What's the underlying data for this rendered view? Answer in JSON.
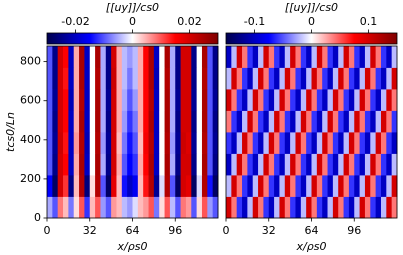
{
  "chart_data": [
    {
      "type": "heatmap",
      "colormap": "seismic",
      "xlabel": "x/ρs0",
      "ylabel": "tcs0/Ln",
      "xlim": [
        0,
        128
      ],
      "xticks": [
        0,
        32,
        64,
        96
      ],
      "ylim": [
        0,
        880
      ],
      "yticks": [
        0,
        200,
        400,
        600,
        800
      ],
      "xbins": [
        0,
        4,
        8,
        12,
        16,
        20,
        24,
        28,
        32,
        36,
        40,
        44,
        48,
        52,
        56,
        60,
        64,
        68,
        72,
        76,
        80,
        84,
        88,
        92,
        96,
        100,
        104,
        108,
        112,
        116,
        120,
        124,
        128
      ],
      "ybins": [
        0,
        110,
        220,
        330,
        440,
        550,
        660,
        770,
        880
      ],
      "colorbar": {
        "label": "[[uy]]/cs0",
        "lim": [
          -0.03,
          0.03
        ],
        "ticks": [
          -0.02,
          0,
          0.02
        ]
      },
      "z": [
        [
          -0.005,
          -0.01,
          0.008,
          0.004,
          -0.008,
          0.002,
          0.01,
          -0.012,
          0.004,
          0.01,
          -0.006,
          -0.01,
          0.006,
          0.004,
          -0.004,
          -0.006,
          -0.002,
          0.004,
          0.006,
          0.01,
          -0.008,
          0.002,
          0.01,
          -0.004,
          -0.01,
          0.008,
          0.006,
          -0.01,
          0.002,
          0.01,
          -0.006,
          -0.01
        ],
        [
          -0.015,
          -0.028,
          0.02,
          0.012,
          -0.025,
          0.004,
          0.024,
          -0.026,
          0.002,
          0.024,
          -0.01,
          -0.028,
          0.018,
          0.004,
          -0.014,
          -0.02,
          -0.016,
          0.004,
          0.014,
          0.024,
          -0.024,
          -0.002,
          0.024,
          -0.01,
          -0.028,
          0.02,
          0.018,
          -0.028,
          -0.002,
          0.024,
          -0.014,
          -0.028
        ],
        [
          -0.01,
          -0.025,
          0.02,
          0.015,
          -0.02,
          0.005,
          0.025,
          -0.02,
          0.0,
          0.025,
          -0.005,
          -0.025,
          0.02,
          0.005,
          -0.01,
          -0.015,
          -0.012,
          0.005,
          0.015,
          0.025,
          -0.02,
          0.0,
          0.025,
          -0.005,
          -0.025,
          0.02,
          0.02,
          -0.025,
          0.0,
          0.025,
          -0.01,
          -0.025
        ],
        [
          -0.01,
          -0.024,
          0.021,
          0.014,
          -0.02,
          0.006,
          0.024,
          -0.021,
          0.0,
          0.024,
          -0.006,
          -0.024,
          0.02,
          0.004,
          -0.008,
          -0.014,
          -0.01,
          0.004,
          0.016,
          0.024,
          -0.02,
          0.0,
          0.024,
          -0.006,
          -0.024,
          0.021,
          0.019,
          -0.024,
          0.0,
          0.024,
          -0.01,
          -0.024
        ],
        [
          -0.01,
          -0.025,
          0.02,
          0.015,
          -0.02,
          0.005,
          0.025,
          -0.02,
          0.0,
          0.025,
          -0.005,
          -0.025,
          0.02,
          0.005,
          -0.006,
          -0.012,
          -0.008,
          0.005,
          0.015,
          0.025,
          -0.02,
          0.0,
          0.025,
          -0.005,
          -0.025,
          0.02,
          0.02,
          -0.025,
          0.0,
          0.025,
          -0.01,
          -0.025
        ],
        [
          -0.01,
          -0.024,
          0.02,
          0.015,
          -0.021,
          0.005,
          0.024,
          -0.02,
          0.0,
          0.025,
          -0.005,
          -0.024,
          0.02,
          0.005,
          -0.005,
          -0.01,
          -0.006,
          0.005,
          0.015,
          0.024,
          -0.02,
          0.0,
          0.025,
          -0.005,
          -0.024,
          0.02,
          0.02,
          -0.024,
          0.0,
          0.025,
          -0.01,
          -0.024
        ],
        [
          -0.01,
          -0.025,
          0.02,
          0.014,
          -0.02,
          0.005,
          0.025,
          -0.02,
          0.0,
          0.024,
          -0.005,
          -0.025,
          0.021,
          0.005,
          -0.004,
          -0.008,
          -0.004,
          0.005,
          0.015,
          0.025,
          -0.021,
          0.0,
          0.024,
          -0.005,
          -0.025,
          0.02,
          0.02,
          -0.025,
          0.0,
          0.024,
          -0.01,
          -0.025
        ],
        [
          -0.01,
          -0.025,
          0.02,
          0.015,
          -0.02,
          0.005,
          0.025,
          -0.02,
          0.0,
          0.025,
          -0.005,
          -0.025,
          0.02,
          0.005,
          -0.004,
          -0.006,
          -0.004,
          0.005,
          0.015,
          0.025,
          -0.02,
          0.0,
          0.025,
          -0.005,
          -0.025,
          0.02,
          0.02,
          -0.025,
          0.0,
          0.025,
          -0.01,
          -0.025
        ]
      ]
    },
    {
      "type": "heatmap",
      "colormap": "seismic",
      "xlabel": "x/ρs0",
      "xlim": [
        0,
        128
      ],
      "xticks": [
        0,
        32,
        64,
        96
      ],
      "ylim": [
        0,
        880
      ],
      "xbins": [
        0,
        4,
        8,
        12,
        16,
        20,
        24,
        28,
        32,
        36,
        40,
        44,
        48,
        52,
        56,
        60,
        64,
        68,
        72,
        76,
        80,
        84,
        88,
        92,
        96,
        100,
        104,
        108,
        112,
        116,
        120,
        124,
        128
      ],
      "ybins": [
        0,
        110,
        220,
        330,
        440,
        550,
        660,
        770,
        880
      ],
      "colorbar": {
        "label": "[[uy]]/cs0",
        "lim": [
          -0.15,
          0.15
        ],
        "ticks": [
          -0.1,
          0,
          0.1
        ]
      },
      "z": [
        [
          0.1,
          0.04,
          -0.06,
          -0.1,
          -0.02,
          0.1,
          0.04,
          -0.06,
          -0.1,
          -0.02,
          0.1,
          0.04,
          -0.06,
          -0.1,
          -0.02,
          0.1,
          0.04,
          -0.06,
          -0.1,
          -0.02,
          0.1,
          0.04,
          -0.06,
          -0.1,
          -0.02,
          0.1,
          0.04,
          -0.06,
          -0.1,
          -0.02,
          0.1,
          0.04
        ],
        [
          -0.02,
          0.1,
          0.04,
          -0.06,
          -0.1,
          -0.02,
          0.1,
          0.04,
          -0.06,
          -0.1,
          -0.02,
          0.1,
          0.04,
          -0.06,
          -0.1,
          -0.02,
          0.1,
          0.04,
          -0.06,
          -0.1,
          -0.02,
          0.1,
          0.04,
          -0.06,
          -0.1,
          -0.02,
          0.1,
          0.04,
          -0.06,
          -0.1,
          -0.02,
          0.1
        ],
        [
          -0.1,
          -0.02,
          0.1,
          0.04,
          -0.06,
          -0.1,
          -0.02,
          0.1,
          0.04,
          -0.06,
          -0.1,
          -0.02,
          0.1,
          0.04,
          -0.06,
          -0.1,
          -0.02,
          0.1,
          0.04,
          -0.06,
          -0.1,
          -0.02,
          0.1,
          0.04,
          -0.06,
          -0.1,
          -0.02,
          0.1,
          0.04,
          -0.06,
          -0.1,
          -0.02
        ],
        [
          -0.06,
          -0.1,
          -0.02,
          0.1,
          0.04,
          -0.06,
          -0.1,
          -0.02,
          0.1,
          0.04,
          -0.06,
          -0.1,
          -0.02,
          0.1,
          0.04,
          -0.06,
          -0.1,
          -0.02,
          0.1,
          0.04,
          -0.06,
          -0.1,
          -0.02,
          0.1,
          0.04,
          -0.06,
          -0.1,
          -0.02,
          0.1,
          0.04,
          -0.06,
          -0.1
        ],
        [
          0.04,
          -0.06,
          -0.1,
          -0.02,
          0.1,
          0.04,
          -0.06,
          -0.1,
          -0.02,
          0.1,
          0.04,
          -0.06,
          -0.1,
          -0.02,
          0.1,
          0.04,
          -0.06,
          -0.1,
          -0.02,
          0.1,
          0.04,
          -0.06,
          -0.1,
          -0.02,
          0.1,
          0.04,
          -0.06,
          -0.1,
          -0.02,
          0.1,
          0.04,
          -0.06
        ],
        [
          0.1,
          0.04,
          -0.06,
          -0.1,
          -0.02,
          0.1,
          0.04,
          -0.06,
          -0.1,
          -0.02,
          0.1,
          0.04,
          -0.06,
          -0.1,
          -0.02,
          0.1,
          0.04,
          -0.06,
          -0.1,
          -0.02,
          0.1,
          0.04,
          -0.06,
          -0.1,
          -0.02,
          0.1,
          0.04,
          -0.06,
          -0.1,
          -0.02,
          0.1,
          0.04
        ],
        [
          -0.02,
          0.1,
          0.04,
          -0.06,
          -0.1,
          -0.02,
          0.1,
          0.04,
          -0.06,
          -0.1,
          -0.02,
          0.1,
          0.04,
          -0.06,
          -0.1,
          -0.02,
          0.1,
          0.04,
          -0.06,
          -0.1,
          -0.02,
          0.1,
          0.04,
          -0.06,
          -0.1,
          -0.02,
          0.1,
          0.04,
          -0.06,
          -0.1,
          -0.02,
          0.1
        ],
        [
          -0.1,
          -0.02,
          0.1,
          0.04,
          -0.06,
          -0.1,
          -0.02,
          0.1,
          0.04,
          -0.06,
          -0.1,
          -0.02,
          0.1,
          0.04,
          -0.06,
          -0.1,
          -0.02,
          0.1,
          0.04,
          -0.06,
          -0.1,
          -0.02,
          0.1,
          0.04,
          -0.06,
          -0.1,
          -0.02,
          0.1,
          0.04,
          -0.06,
          -0.1,
          -0.02
        ]
      ]
    }
  ]
}
